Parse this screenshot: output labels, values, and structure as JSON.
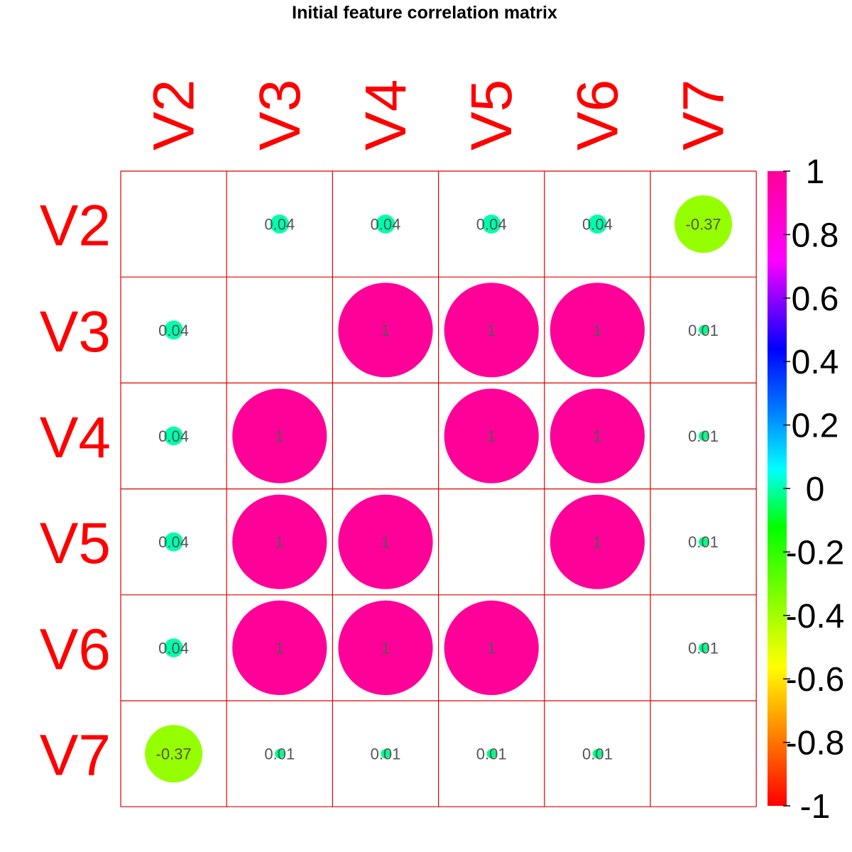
{
  "chart_data": {
    "type": "heatmap",
    "title": "Initial feature correlation matrix",
    "variables": [
      "V2",
      "V3",
      "V4",
      "V5",
      "V6",
      "V7"
    ],
    "matrix": [
      [
        null,
        0.04,
        0.04,
        0.04,
        0.04,
        -0.37
      ],
      [
        0.04,
        null,
        1,
        1,
        1,
        0.01
      ],
      [
        0.04,
        1,
        null,
        1,
        1,
        0.01
      ],
      [
        0.04,
        1,
        1,
        null,
        1,
        0.01
      ],
      [
        0.04,
        1,
        1,
        1,
        null,
        0.01
      ],
      [
        -0.37,
        0.01,
        0.01,
        0.01,
        0.01,
        null
      ]
    ],
    "cell_labels": [
      [
        "",
        "0.04",
        "0.04",
        "0.04",
        "0.04",
        "-0.37"
      ],
      [
        "0.04",
        "",
        "1",
        "1",
        "1",
        "0.01"
      ],
      [
        "0.04",
        "1",
        "",
        "1",
        "1",
        "0.01"
      ],
      [
        "0.04",
        "1",
        "1",
        "",
        "1",
        "0.01"
      ],
      [
        "0.04",
        "1",
        "1",
        "1",
        "",
        "0.01"
      ],
      [
        "-0.37",
        "0.01",
        "0.01",
        "0.01",
        "0.01",
        ""
      ]
    ],
    "diagonal": "blank",
    "glyph": "circle",
    "color_range": [
      -1,
      1
    ],
    "colorbar_ticks": [
      "1",
      "0.8",
      "0.6",
      "0.4",
      "0.2",
      "0",
      "-0.2",
      "-0.4",
      "-0.6",
      "-0.8",
      "-1"
    ],
    "colorbar_tick_values": [
      1,
      0.8,
      0.6,
      0.4,
      0.2,
      0,
      -0.2,
      -0.4,
      -0.6,
      -0.8,
      -1
    ],
    "colors": {
      "grid": "#e00000",
      "label": "#ff0000",
      "cell_text": "#555555",
      "palette": [
        "#ff0000",
        "#ff8000",
        "#ffff00",
        "#80ff00",
        "#00ff00",
        "#00ffff",
        "#0080ff",
        "#0000ff",
        "#ff00ff",
        "#ff0099"
      ]
    },
    "legend": "right"
  }
}
